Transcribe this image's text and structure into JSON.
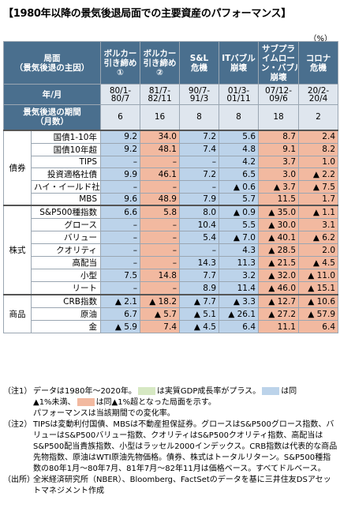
{
  "title": "【1980年以降の景気後退局面での主要資産のパフォーマンス】",
  "unit": "（%）",
  "colors": {
    "header": "#4a6f8e",
    "blue": "#bcd3ea",
    "orange": "#f2b9a0",
    "green": "#d6e8c3"
  },
  "header": {
    "phase_label": "局面\n（景気後退の主因）",
    "phases": [
      "ボルカー\n引き締め\n①",
      "ボルカー\n引き締め\n②",
      "S&L\n危機",
      "ITバブル\n崩壊",
      "サブプラ\nイムロー\nン・バブル\n崩壊",
      "コロナ\n危機"
    ],
    "ym_label": "年/月",
    "periods": [
      "80/1-\n80/7",
      "81/7-\n82/11",
      "90/7-\n91/3",
      "01/3-\n01/11",
      "07/12-\n09/6",
      "20/2-\n20/4"
    ],
    "duration_label": "景気後退の期間\n（月数）",
    "durations": [
      "6",
      "16",
      "8",
      "8",
      "18",
      "2"
    ]
  },
  "chart_data": {
    "type": "table",
    "columns": [
      "ボルカー引き締め①",
      "ボルカー引き締め②",
      "S&L危機",
      "ITバブル崩壊",
      "サブプライムローン・バブル崩壊",
      "コロナ危機"
    ],
    "groups": [
      {
        "name": "債券",
        "rows": [
          {
            "label": "国債1-10年",
            "values": [
              "9.2",
              "34.0",
              "7.2",
              "5.6",
              "8.7",
              "2.4"
            ],
            "colors": [
              "b",
              "o",
              "b",
              "b",
              "o",
              "o"
            ]
          },
          {
            "label": "国債10年超",
            "values": [
              "9.2",
              "48.1",
              "7.4",
              "4.8",
              "9.1",
              "8.2"
            ],
            "colors": [
              "b",
              "o",
              "b",
              "b",
              "o",
              "o"
            ]
          },
          {
            "label": "TIPS",
            "values": [
              "–",
              "–",
              "–",
              "4.2",
              "3.7",
              "1.0"
            ],
            "colors": [
              "b",
              "o",
              "b",
              "b",
              "o",
              "o"
            ]
          },
          {
            "label": "投資適格社債",
            "values": [
              "9.9",
              "46.1",
              "7.2",
              "6.5",
              "3.0",
              "▲ 2.2"
            ],
            "colors": [
              "b",
              "o",
              "b",
              "b",
              "o",
              "o"
            ]
          },
          {
            "label": "ハイ・イールド社債",
            "values": [
              "–",
              "–",
              "–",
              "▲ 0.6",
              "▲ 3.7",
              "▲ 7.5"
            ],
            "colors": [
              "b",
              "o",
              "b",
              "b",
              "o",
              "o"
            ]
          },
          {
            "label": "MBS",
            "values": [
              "9.6",
              "48.9",
              "7.9",
              "5.7",
              "11.5",
              "1.7"
            ],
            "colors": [
              "b",
              "o",
              "b",
              "b",
              "o",
              "o"
            ]
          }
        ]
      },
      {
        "name": "株式",
        "rows": [
          {
            "label": "S&P500種指数",
            "values": [
              "6.6",
              "5.8",
              "8.0",
              "▲ 0.9",
              "▲ 35.0",
              "▲ 1.1"
            ],
            "colors": [
              "b",
              "o",
              "b",
              "b",
              "o",
              "o"
            ]
          },
          {
            "label": "グロース",
            "values": [
              "–",
              "–",
              "10.4",
              "5.5",
              "▲ 30.0",
              "3.1"
            ],
            "colors": [
              "b",
              "o",
              "b",
              "b",
              "o",
              "o"
            ]
          },
          {
            "label": "バリュー",
            "values": [
              "–",
              "–",
              "5.4",
              "▲ 7.0",
              "▲ 40.1",
              "▲ 6.2"
            ],
            "colors": [
              "b",
              "o",
              "b",
              "b",
              "o",
              "o"
            ]
          },
          {
            "label": "クオリティ",
            "values": [
              "–",
              "–",
              "–",
              "4.3",
              "▲ 28.5",
              "2.0"
            ],
            "colors": [
              "b",
              "o",
              "b",
              "b",
              "o",
              "o"
            ]
          },
          {
            "label": "高配当",
            "values": [
              "–",
              "–",
              "14.3",
              "11.3",
              "▲ 21.5",
              "▲ 4.5"
            ],
            "colors": [
              "b",
              "o",
              "b",
              "b",
              "o",
              "o"
            ]
          },
          {
            "label": "小型",
            "values": [
              "7.5",
              "14.8",
              "7.7",
              "3.2",
              "▲ 32.0",
              "▲ 11.0"
            ],
            "colors": [
              "b",
              "o",
              "b",
              "b",
              "o",
              "o"
            ]
          },
          {
            "label": "リート",
            "values": [
              "–",
              "–",
              "8.9",
              "11.4",
              "▲ 46.0",
              "▲ 15.1"
            ],
            "colors": [
              "b",
              "o",
              "b",
              "b",
              "o",
              "o"
            ]
          }
        ]
      },
      {
        "name": "商品",
        "rows": [
          {
            "label": "CRB指数",
            "values": [
              "▲ 2.1",
              "▲ 18.2",
              "▲ 7.7",
              "▲ 3.3",
              "▲ 12.7",
              "▲ 10.6"
            ],
            "colors": [
              "b",
              "o",
              "b",
              "b",
              "o",
              "o"
            ]
          },
          {
            "label": "原油",
            "values": [
              "6.7",
              "▲ 5.7",
              "▲ 5.1",
              "▲ 26.1",
              "▲ 27.2",
              "▲ 57.9"
            ],
            "colors": [
              "b",
              "o",
              "b",
              "b",
              "o",
              "o"
            ]
          },
          {
            "label": "金",
            "values": [
              "▲ 5.9",
              "7.4",
              "▲ 4.5",
              "6.4",
              "11.1",
              "6.4"
            ],
            "colors": [
              "b",
              "o",
              "b",
              "b",
              "o",
              "o"
            ]
          }
        ]
      }
    ]
  },
  "notes": {
    "n1_key": "（注1）",
    "n1_a": "データは1980年～2020年。",
    "n1_b": "は実質GDP成長率がプラス。",
    "n1_c": "は同",
    "n1_d": "▲1%未満、",
    "n1_e": "は同▲1%超となった局面を示す。",
    "n1_f": "パフォーマンスは当該期間での変化率。",
    "n2_key": "（注2）",
    "n2_body": "TIPSは変動利付国債、MBSは不動産担保証券。グロースはS&P500グロース指数、バリューはS&P500バリュー指数、クオリティはS&P500クオリティ指数、高配当はS&P500配当貴族指数、小型はラッセル2000インデックス。CRB指数は代表的な商品先物指数、原油はWTI原油先物価格。債券、株式はトータルリターン。S&P500種指数の80年1月～80年7月、81年7月～82年11月は価格ベース。すべてドルベース。",
    "n3_key": "（出所）",
    "n3_body": "全米経済研究所（NBER）、Bloomberg、FactSetのデータを基に三井住友DSアセットマネジメント作成"
  }
}
